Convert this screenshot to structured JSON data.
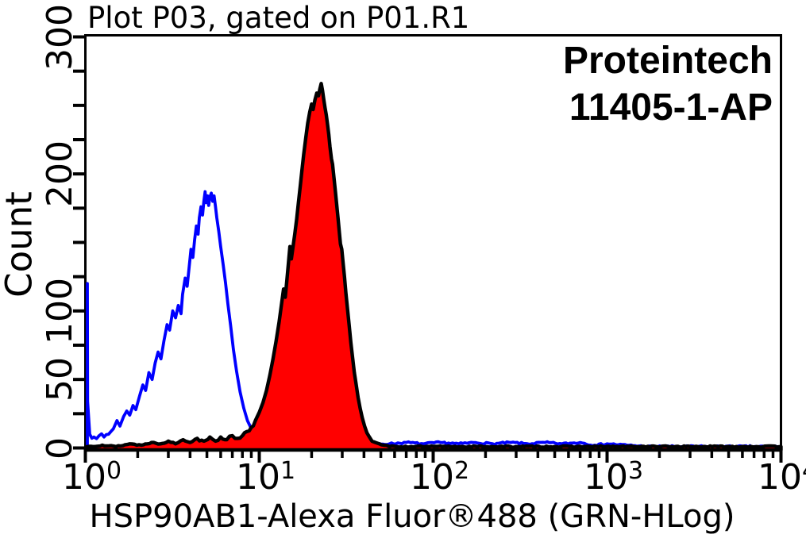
{
  "figure": {
    "title": "Plot P03, gated on P01.R1",
    "annotation": {
      "line1": "Proteintech",
      "line2": "11405-1-AP"
    },
    "background_color": "#ffffff",
    "axis_color": "#000000",
    "text_color": "#000000"
  },
  "chart_data": {
    "type": "line",
    "subtype": "flow-cytometry-histogram",
    "title": "Plot P03, gated on P01.R1",
    "xlabel": "HSP90AB1-Alexa Fluor®488 (GRN-HLog)",
    "ylabel": "Count",
    "x_scale": "log",
    "xlim": [
      1,
      10000
    ],
    "ylim": [
      0,
      300
    ],
    "grid": false,
    "legend_position": "none",
    "x_ticks": [
      {
        "base": "10",
        "exp": "0",
        "value": 1
      },
      {
        "base": "10",
        "exp": "1",
        "value": 10
      },
      {
        "base": "10",
        "exp": "2",
        "value": 100
      },
      {
        "base": "10",
        "exp": "3",
        "value": 1000
      },
      {
        "base": "10",
        "exp": "4",
        "value": 10000
      }
    ],
    "x_minor_ticks_per_decade": [
      2,
      3,
      4,
      5,
      6,
      7,
      8,
      9
    ],
    "y_tick_labels": [
      {
        "label": "0",
        "value": 0
      },
      {
        "label": "50",
        "value": 50
      },
      {
        "label": "100",
        "value": 100
      },
      {
        "label": "200",
        "value": 200
      },
      {
        "label": "300",
        "value": 300
      }
    ],
    "y_ticks_all": [
      0,
      25,
      50,
      75,
      100,
      125,
      150,
      175,
      200,
      225,
      250,
      275,
      300
    ],
    "series": [
      {
        "name": "blue_open_histogram_control",
        "color": "#0000ff",
        "fill": "none",
        "stroke_width": 3.8,
        "peak": {
          "x": 4.9,
          "count": 187
        },
        "points": [
          [
            1.0,
            2
          ],
          [
            1.0,
            120
          ],
          [
            1.03,
            34
          ],
          [
            1.06,
            10
          ],
          [
            1.12,
            8
          ],
          [
            1.2,
            9
          ],
          [
            1.28,
            8
          ],
          [
            1.36,
            10
          ],
          [
            1.45,
            14
          ],
          [
            1.52,
            20
          ],
          [
            1.58,
            16
          ],
          [
            1.66,
            23
          ],
          [
            1.73,
            27
          ],
          [
            1.8,
            24
          ],
          [
            1.88,
            31
          ],
          [
            1.95,
            28
          ],
          [
            2.05,
            38
          ],
          [
            2.14,
            46
          ],
          [
            2.22,
            42
          ],
          [
            2.32,
            55
          ],
          [
            2.42,
            50
          ],
          [
            2.52,
            62
          ],
          [
            2.62,
            70
          ],
          [
            2.72,
            65
          ],
          [
            2.83,
            78
          ],
          [
            2.95,
            90
          ],
          [
            3.05,
            86
          ],
          [
            3.18,
            100
          ],
          [
            3.3,
            95
          ],
          [
            3.42,
            104
          ],
          [
            3.55,
            98
          ],
          [
            3.62,
            112
          ],
          [
            3.75,
            124
          ],
          [
            3.85,
            118
          ],
          [
            3.95,
            132
          ],
          [
            4.05,
            145
          ],
          [
            4.15,
            139
          ],
          [
            4.25,
            152
          ],
          [
            4.35,
            162
          ],
          [
            4.45,
            156
          ],
          [
            4.52,
            168
          ],
          [
            4.62,
            176
          ],
          [
            4.72,
            170
          ],
          [
            4.8,
            180
          ],
          [
            4.88,
            187
          ],
          [
            4.95,
            179
          ],
          [
            5.05,
            184
          ],
          [
            5.12,
            177
          ],
          [
            5.2,
            183
          ],
          [
            5.3,
            186
          ],
          [
            5.4,
            180
          ],
          [
            5.5,
            184
          ],
          [
            5.6,
            176
          ],
          [
            5.7,
            168
          ],
          [
            5.85,
            158
          ],
          [
            6.0,
            147
          ],
          [
            6.2,
            134
          ],
          [
            6.4,
            120
          ],
          [
            6.6,
            105
          ],
          [
            6.85,
            89
          ],
          [
            7.1,
            72
          ],
          [
            7.4,
            56
          ],
          [
            7.75,
            41
          ],
          [
            8.15,
            29
          ],
          [
            8.55,
            20
          ],
          [
            9.0,
            14
          ],
          [
            9.5,
            10
          ],
          [
            10.2,
            8
          ],
          [
            11,
            6
          ],
          [
            12,
            5
          ],
          [
            13.5,
            4
          ],
          [
            15.5,
            4
          ],
          [
            18,
            3
          ],
          [
            21,
            3
          ],
          [
            25,
            2
          ],
          [
            30,
            3
          ],
          [
            37,
            2
          ],
          [
            45,
            3
          ],
          [
            56,
            3
          ],
          [
            70,
            4
          ],
          [
            88,
            3
          ],
          [
            110,
            4
          ],
          [
            140,
            3
          ],
          [
            175,
            4
          ],
          [
            220,
            3
          ],
          [
            280,
            4
          ],
          [
            350,
            3
          ],
          [
            440,
            4
          ],
          [
            550,
            3
          ],
          [
            700,
            4
          ],
          [
            850,
            2
          ],
          [
            1000,
            3
          ],
          [
            1300,
            2
          ],
          [
            1700,
            1
          ],
          [
            2500,
            1
          ],
          [
            4000,
            1
          ],
          [
            7000,
            1
          ],
          [
            10000,
            1
          ]
        ]
      },
      {
        "name": "red_filled_histogram_stained",
        "color": "#000000",
        "fill": "#ff0000",
        "stroke_width": 4.4,
        "peak": {
          "x": 22.7,
          "count": 266
        },
        "points": [
          [
            1.0,
            1
          ],
          [
            1.25,
            2
          ],
          [
            1.5,
            1
          ],
          [
            1.8,
            3
          ],
          [
            2.1,
            2
          ],
          [
            2.4,
            4
          ],
          [
            2.7,
            3
          ],
          [
            3.0,
            5
          ],
          [
            3.3,
            3
          ],
          [
            3.65,
            6
          ],
          [
            4.0,
            4
          ],
          [
            4.4,
            7
          ],
          [
            4.8,
            5
          ],
          [
            5.2,
            8
          ],
          [
            5.6,
            5
          ],
          [
            6.0,
            8
          ],
          [
            6.5,
            6
          ],
          [
            7.0,
            9
          ],
          [
            7.5,
            7
          ],
          [
            8.0,
            9
          ],
          [
            8.5,
            12
          ],
          [
            9.0,
            15
          ],
          [
            9.5,
            20
          ],
          [
            10.0,
            26
          ],
          [
            10.5,
            33
          ],
          [
            11.0,
            42
          ],
          [
            11.5,
            53
          ],
          [
            12.0,
            65
          ],
          [
            12.5,
            78
          ],
          [
            13.0,
            92
          ],
          [
            13.4,
            104
          ],
          [
            13.8,
            116
          ],
          [
            14.1,
            110
          ],
          [
            14.4,
            122
          ],
          [
            14.7,
            134
          ],
          [
            15.0,
            147
          ],
          [
            15.3,
            138
          ],
          [
            15.6,
            146
          ],
          [
            16.0,
            156
          ],
          [
            16.4,
            167
          ],
          [
            16.8,
            179
          ],
          [
            17.2,
            191
          ],
          [
            17.6,
            203
          ],
          [
            18.0,
            214
          ],
          [
            18.5,
            226
          ],
          [
            19.0,
            237
          ],
          [
            19.5,
            245
          ],
          [
            20.0,
            251
          ],
          [
            20.4,
            247
          ],
          [
            20.9,
            254
          ],
          [
            21.4,
            259
          ],
          [
            21.9,
            257
          ],
          [
            22.3,
            262
          ],
          [
            22.7,
            266
          ],
          [
            23.1,
            261
          ],
          [
            23.5,
            254
          ],
          [
            23.9,
            248
          ],
          [
            24.3,
            243
          ],
          [
            24.7,
            236
          ],
          [
            25.1,
            229
          ],
          [
            25.5,
            220
          ],
          [
            26.0,
            211
          ],
          [
            26.4,
            207
          ],
          [
            26.9,
            197
          ],
          [
            27.4,
            187
          ],
          [
            27.9,
            177
          ],
          [
            28.4,
            167
          ],
          [
            28.9,
            157
          ],
          [
            29.3,
            149
          ],
          [
            29.8,
            145
          ],
          [
            30.3,
            136
          ],
          [
            30.9,
            125
          ],
          [
            31.5,
            113
          ],
          [
            32.2,
            101
          ],
          [
            32.9,
            89
          ],
          [
            33.6,
            77
          ],
          [
            34.4,
            66
          ],
          [
            35.2,
            55
          ],
          [
            36.1,
            46
          ],
          [
            37.0,
            37
          ],
          [
            38.0,
            29
          ],
          [
            39.1,
            22
          ],
          [
            40.3,
            16
          ],
          [
            41.6,
            11
          ],
          [
            43.0,
            8
          ],
          [
            44.5,
            5
          ],
          [
            46.5,
            4
          ],
          [
            49,
            3
          ],
          [
            52,
            2
          ],
          [
            56,
            1
          ],
          [
            62,
            1
          ],
          [
            75,
            1
          ],
          [
            95,
            1
          ],
          [
            130,
            1
          ],
          [
            200,
            1
          ],
          [
            300,
            1
          ],
          [
            500,
            1
          ],
          [
            800,
            1
          ],
          [
            1500,
            1
          ],
          [
            3000,
            1
          ],
          [
            6000,
            1
          ],
          [
            10000,
            1
          ]
        ]
      }
    ]
  }
}
